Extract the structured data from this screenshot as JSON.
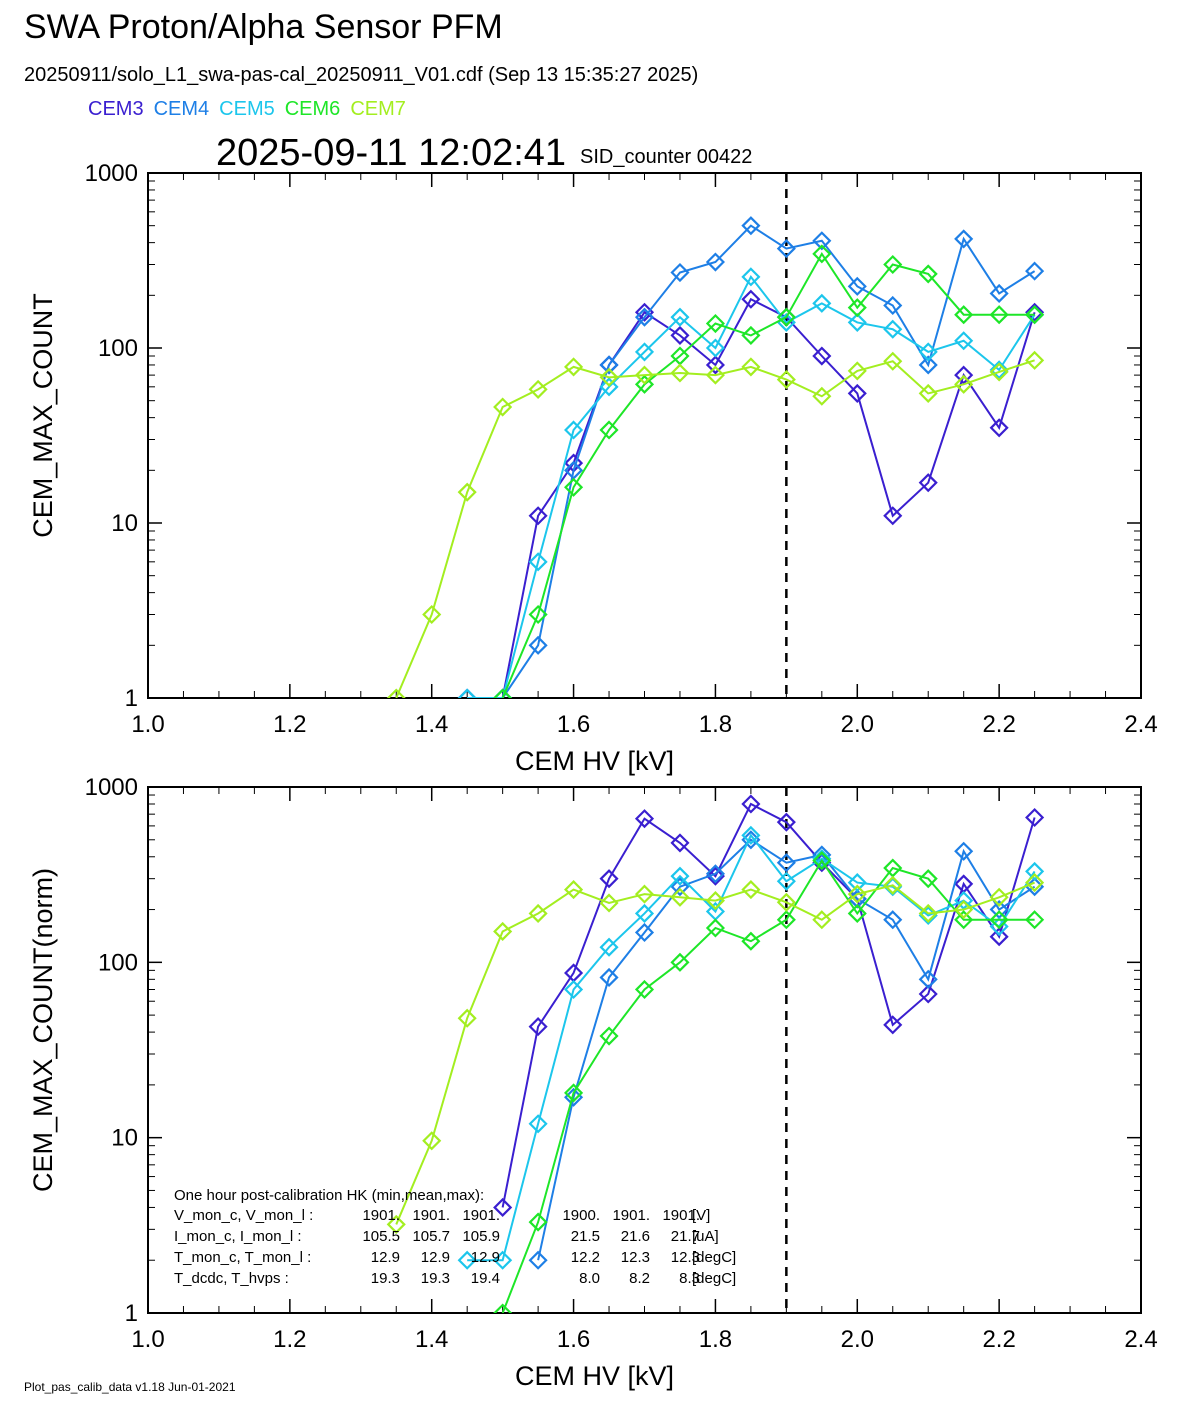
{
  "header": {
    "title": "SWA Proton/Alpha Sensor PFM",
    "subtitle": "20250911/solo_L1_swa-pas-cal_20250911_V01.cdf  (Sep 13 15:35:27 2025)",
    "timestamp": "2025-09-11 12:02:41",
    "sid_counter": "SID_counter 00422"
  },
  "footer": "Plot_pas_calib_data v1.18 Jun-01-2021",
  "series_colors": {
    "CEM3": "#3a1fd0",
    "CEM4": "#1e7fe6",
    "CEM5": "#1cc6ec",
    "CEM6": "#1ee628",
    "CEM7": "#a3ee20"
  },
  "reference_line_x": 1.9,
  "hk_table": {
    "title": "One hour post-calibration HK (min,mean,max):",
    "rows": [
      {
        "label": "V_mon_c, V_mon_l :",
        "a": [
          "1901.",
          "1901.",
          "1901."
        ],
        "b": [
          "1900.",
          "1901.",
          "1901."
        ],
        "unit": "[V]"
      },
      {
        "label": "I_mon_c,  I_mon_l :",
        "a": [
          "105.5",
          "105.7",
          "105.9"
        ],
        "b": [
          "21.5",
          "21.6",
          "21.7"
        ],
        "unit": "[uA]"
      },
      {
        "label": "T_mon_c, T_mon_l :",
        "a": [
          "12.9",
          "12.9",
          "12.9"
        ],
        "b": [
          "12.2",
          "12.3",
          "12.3"
        ],
        "unit": "[degC]"
      },
      {
        "label": "T_dcdc,    T_hvps :",
        "a": [
          "19.3",
          "19.3",
          "19.4"
        ],
        "b": [
          "8.0",
          "8.2",
          "8.3"
        ],
        "unit": "[degC]"
      }
    ]
  },
  "chart_data": [
    {
      "type": "line",
      "xlabel": "CEM HV [kV]",
      "ylabel": "CEM_MAX_COUNT",
      "xlim": [
        1.0,
        2.4
      ],
      "ylim": [
        1,
        1000
      ],
      "yscale": "log",
      "xticks": [
        "1.0",
        "1.2",
        "1.4",
        "1.6",
        "1.8",
        "2.0",
        "2.2",
        "2.4"
      ],
      "yticks": [
        "1",
        "10",
        "100",
        "1000"
      ],
      "grid": false,
      "legend": "top-left",
      "x": [
        1.35,
        1.4,
        1.45,
        1.5,
        1.55,
        1.6,
        1.65,
        1.7,
        1.75,
        1.8,
        1.85,
        1.9,
        1.95,
        2.0,
        2.05,
        2.1,
        2.15,
        2.2,
        2.25
      ],
      "series": [
        {
          "name": "CEM3",
          "values": [
            null,
            null,
            1,
            1,
            11,
            22,
            80,
            160,
            118,
            80,
            190,
            150,
            90,
            55,
            11,
            17,
            70,
            35,
            160
          ]
        },
        {
          "name": "CEM4",
          "values": [
            null,
            null,
            1,
            1,
            2,
            20,
            80,
            150,
            270,
            310,
            500,
            370,
            410,
            225,
            175,
            80,
            420,
            205,
            275
          ]
        },
        {
          "name": "CEM5",
          "values": [
            null,
            null,
            1,
            1,
            6,
            34,
            60,
            95,
            150,
            100,
            255,
            140,
            180,
            140,
            128,
            95,
            110,
            75,
            155
          ]
        },
        {
          "name": "CEM6",
          "values": [
            null,
            null,
            null,
            1,
            3,
            16,
            34,
            62,
            90,
            138,
            118,
            150,
            345,
            170,
            300,
            265,
            155,
            155,
            155
          ]
        },
        {
          "name": "CEM7",
          "values": [
            1,
            3,
            15,
            46,
            58,
            78,
            68,
            70,
            72,
            70,
            78,
            66,
            53,
            74,
            84,
            55,
            62,
            73,
            85
          ]
        }
      ]
    },
    {
      "type": "line",
      "xlabel": "CEM HV [kV]",
      "ylabel": "CEM_MAX_COUNT(norm)",
      "xlim": [
        1.0,
        2.4
      ],
      "ylim": [
        1,
        1000
      ],
      "yscale": "log",
      "xticks": [
        "1.0",
        "1.2",
        "1.4",
        "1.6",
        "1.8",
        "2.0",
        "2.2",
        "2.4"
      ],
      "yticks": [
        "1",
        "10",
        "100",
        "1000"
      ],
      "grid": false,
      "x": [
        1.35,
        1.4,
        1.45,
        1.5,
        1.55,
        1.6,
        1.65,
        1.7,
        1.75,
        1.8,
        1.85,
        1.9,
        1.95,
        2.0,
        2.05,
        2.1,
        2.15,
        2.2,
        2.25
      ],
      "series": [
        {
          "name": "CEM3",
          "values": [
            null,
            null,
            null,
            4,
            43,
            87,
            300,
            660,
            480,
            310,
            800,
            630,
            370,
            230,
            44,
            66,
            280,
            140,
            670
          ]
        },
        {
          "name": "CEM4",
          "values": [
            null,
            null,
            null,
            null,
            2,
            17,
            82,
            148,
            270,
            320,
            500,
            370,
            410,
            230,
            175,
            80,
            430,
            200,
            270
          ]
        },
        {
          "name": "CEM5",
          "values": [
            null,
            null,
            2,
            2,
            12,
            70,
            122,
            190,
            310,
            195,
            530,
            290,
            390,
            285,
            270,
            185,
            225,
            160,
            330
          ]
        },
        {
          "name": "CEM6",
          "values": [
            null,
            null,
            null,
            1,
            3.3,
            18,
            38,
            70,
            100,
            157,
            132,
            175,
            380,
            190,
            345,
            300,
            175,
            175,
            175
          ]
        },
        {
          "name": "CEM7",
          "values": [
            3.2,
            9.6,
            48,
            150,
            190,
            260,
            218,
            245,
            235,
            225,
            260,
            220,
            175,
            245,
            275,
            190,
            200,
            235,
            285
          ]
        }
      ]
    }
  ]
}
